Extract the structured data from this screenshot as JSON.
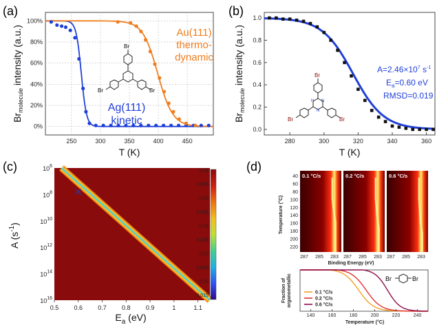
{
  "panels": {
    "a": {
      "label": "(a)"
    },
    "b": {
      "label": "(b)"
    },
    "c": {
      "label": "(c)"
    },
    "d": {
      "label": "(d)"
    }
  },
  "colors": {
    "blue": "#1f3fd8",
    "orange": "#f07d1e",
    "darkred": "#8b0a0a",
    "heatbg": "#8a0b0b"
  },
  "chart_data": [
    {
      "panel": "a",
      "type": "scatter",
      "xlabel": "T (K)",
      "ylabel_main": "Br",
      "ylabel_sub": "molecule",
      "ylabel_tail": " intensity (a.u.)",
      "xlim": [
        205,
        495
      ],
      "ylim": [
        -0.08,
        1.08
      ],
      "xticks": [
        250,
        300,
        350,
        400,
        450
      ],
      "yticks": [
        {
          "v": 0,
          "t": "0%"
        },
        {
          "v": 0.2,
          "t": "20%"
        },
        {
          "v": 0.4,
          "t": "40%"
        },
        {
          "v": 0.6,
          "t": "60%"
        },
        {
          "v": 0.8,
          "t": "80%"
        },
        {
          "v": 1.0,
          "t": "100%"
        }
      ],
      "series": [
        {
          "name": "Ag(111) kinetic",
          "color": "#1f3fd8",
          "points": [
            [
              215,
              0.99
            ],
            [
              225,
              0.96
            ],
            [
              233,
              0.95
            ],
            [
              240,
              0.94
            ],
            [
              248,
              0.91
            ],
            [
              256,
              0.84
            ],
            [
              263,
              0.64
            ],
            [
              270,
              0.36
            ],
            [
              275,
              0.14
            ],
            [
              281,
              0.03
            ],
            [
              292,
              0.01
            ],
            [
              305,
              0.01
            ],
            [
              318,
              0.01
            ],
            [
              331,
              0.01
            ],
            [
              344,
              0.01
            ],
            [
              357,
              0.01
            ],
            [
              370,
              0.01
            ],
            [
              383,
              0.01
            ],
            [
              396,
              0.01
            ],
            [
              409,
              0.01
            ],
            [
              422,
              0.01
            ],
            [
              435,
              0.01
            ],
            [
              448,
              0.01
            ],
            [
              461,
              0.01
            ],
            [
              474,
              0.01
            ],
            [
              487,
              0.01
            ]
          ],
          "fit": {
            "t0": 267,
            "w": 4.5
          }
        },
        {
          "name": "Au(111) thermodynamic",
          "color": "#f07d1e",
          "points": [
            [
              330,
              0.99
            ],
            [
              352,
              0.98
            ],
            [
              362,
              0.95
            ],
            [
              370,
              0.9
            ],
            [
              378,
              0.82
            ],
            [
              386,
              0.71
            ],
            [
              394,
              0.59
            ],
            [
              402,
              0.46
            ],
            [
              410,
              0.33
            ],
            [
              418,
              0.22
            ],
            [
              426,
              0.14
            ],
            [
              436,
              0.07
            ],
            [
              448,
              0.03
            ],
            [
              464,
              0.01
            ]
          ],
          "fit": {
            "t0": 399,
            "w": 13
          }
        }
      ],
      "annotations": [
        {
          "text": "Au(111)",
          "color": "#f07d1e"
        },
        {
          "text": "thermo-",
          "color": "#f07d1e"
        },
        {
          "text": "dynamic",
          "color": "#f07d1e"
        },
        {
          "text": "Ag(111)",
          "color": "#1f3fd8"
        },
        {
          "text": "kinetic",
          "color": "#1f3fd8"
        }
      ],
      "molecule_labels": [
        "Br",
        "Br",
        "Br"
      ]
    },
    {
      "panel": "b",
      "type": "scatter",
      "xlabel": "T (K)",
      "ylabel_main": "Br",
      "ylabel_sub": "molecule",
      "ylabel_tail": " intensity (a.u.)",
      "xlim": [
        265,
        365
      ],
      "ylim": [
        -0.05,
        1.05
      ],
      "xticks": [
        280,
        300,
        320,
        340,
        360
      ],
      "yticks": [
        {
          "v": 0,
          "t": "0.0"
        },
        {
          "v": 0.2,
          "t": "0.2"
        },
        {
          "v": 0.4,
          "t": "0.4"
        },
        {
          "v": 0.6,
          "t": "0.6"
        },
        {
          "v": 0.8,
          "t": "0.8"
        },
        {
          "v": 1.0,
          "t": "1.0"
        }
      ],
      "points": [
        [
          268,
          1.0
        ],
        [
          272,
          1.0
        ],
        [
          276,
          0.99
        ],
        [
          280,
          0.99
        ],
        [
          284,
          0.98
        ],
        [
          288,
          0.97
        ],
        [
          292,
          0.95
        ],
        [
          296,
          0.92
        ],
        [
          300,
          0.87
        ],
        [
          304,
          0.8
        ],
        [
          308,
          0.71
        ],
        [
          312,
          0.6
        ],
        [
          316,
          0.48
        ],
        [
          320,
          0.36
        ],
        [
          324,
          0.26
        ],
        [
          328,
          0.17
        ],
        [
          332,
          0.11
        ],
        [
          336,
          0.07
        ],
        [
          340,
          0.03
        ],
        [
          344,
          0.02
        ],
        [
          348,
          0.01
        ],
        [
          352,
          0.0
        ],
        [
          356,
          0.0
        ],
        [
          360,
          0.0
        ],
        [
          364,
          0.0
        ]
      ],
      "fit": {
        "t0": 317,
        "w": 9
      },
      "annotations": {
        "A_prefix": "A=2.46×10",
        "A_exp": "7",
        "A_unit": " s",
        "A_unit_exp": "-1",
        "Ea_main": "E",
        "Ea_sub": "a",
        "Ea_tail": "=0.60 eV",
        "rmsd": "RMSD=0.019"
      },
      "molecule_labels": [
        "Br",
        "Br",
        "Br",
        "N",
        "N",
        "N"
      ]
    },
    {
      "panel": "c",
      "type": "heatmap",
      "xlabel_main": "E",
      "xlabel_sub": "a",
      "xlabel_tail": " (eV)",
      "ylabel": "A (s",
      "ylabel_exp": "-1",
      "ylabel_end": ")",
      "xlim": [
        0.5,
        1.15
      ],
      "ylog": true,
      "xticks": [
        0.5,
        0.6,
        0.7,
        0.8,
        0.9,
        1.0,
        1.1
      ],
      "xticklabels": [
        "0.5",
        "0.6",
        "0.7",
        "0.8",
        "0.9",
        "1",
        "1.1"
      ],
      "yticks": [
        {
          "b": "10",
          "e": "6"
        },
        {
          "b": "10",
          "e": "8"
        },
        {
          "b": "10",
          "e": "10"
        },
        {
          "b": "10",
          "e": "12"
        },
        {
          "b": "10",
          "e": "14"
        },
        {
          "b": "10",
          "e": "16"
        }
      ],
      "valley": {
        "x": [
          0.53,
          1.15
        ],
        "logA": [
          6.0,
          16.0
        ]
      },
      "colorbar": {
        "ticks": [
          "0.06",
          "0.055",
          "0.05",
          "0.045",
          "0.04",
          "0.035",
          "0.03",
          "0.025",
          "0.02",
          "0.015"
        ]
      }
    },
    {
      "panel": "d",
      "type": "heatmap",
      "heatmaps": [
        {
          "label": "0.1 °C/s"
        },
        {
          "label": "0.2 °C/s"
        },
        {
          "label": "0.6 °C/s"
        }
      ],
      "ylabel": "Temperature (°C)",
      "yticks": [
        "40",
        "60",
        "80",
        "100",
        "120",
        "140",
        "160",
        "180",
        "200",
        "220"
      ],
      "xticks": [
        "287",
        "285",
        "283"
      ],
      "xlabel": "Binding Energy (eV)"
    },
    {
      "panel": "d-lower",
      "type": "line",
      "xlabel": "Temperature (°C)",
      "ylabel": [
        "Fraction of",
        "organometallic"
      ],
      "xlim": [
        130,
        250
      ],
      "ylim": [
        0,
        1
      ],
      "xticks": [
        140,
        160,
        180,
        200,
        220,
        240
      ],
      "series": [
        {
          "name": "0.1 °C/s",
          "color": "#f0a020",
          "t0": 185,
          "w": 7
        },
        {
          "name": "0.2 °C/s",
          "color": "#e03030",
          "t0": 192,
          "w": 7
        },
        {
          "name": "0.6 °C/s",
          "color": "#8b0a4a",
          "t0": 212,
          "w": 6
        }
      ],
      "molecule_labels": [
        "Br",
        "Br"
      ]
    }
  ]
}
